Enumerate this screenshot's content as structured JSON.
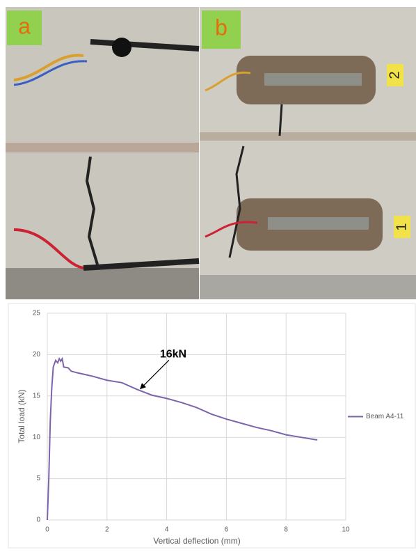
{
  "photos": {
    "panel_labels": [
      "a",
      "b"
    ],
    "gauge_labels": [
      "2",
      "1"
    ]
  },
  "chart_data": {
    "type": "line",
    "x_label": "Vertical deflection (mm)",
    "y_label": "Total load (kN)",
    "x": [
      0,
      0.05,
      0.1,
      0.15,
      0.2,
      0.28,
      0.35,
      0.4,
      0.45,
      0.5,
      0.55,
      0.7,
      0.8,
      1,
      1.5,
      2,
      2.5,
      3,
      3.5,
      4,
      4.5,
      5,
      5.5,
      6,
      6.5,
      7,
      7.5,
      8,
      8.5,
      9,
      9.05
    ],
    "series": [
      {
        "name": "Beam A4-11",
        "color": "#7c64aa",
        "values": [
          0,
          5,
          12,
          16,
          18.5,
          19.3,
          19,
          19.5,
          19.2,
          19.5,
          18.5,
          18.4,
          18,
          17.8,
          17.4,
          16.9,
          16.6,
          15.8,
          15.1,
          14.7,
          14.2,
          13.6,
          12.8,
          12.2,
          11.7,
          11.2,
          10.8,
          10.3,
          10,
          9.7,
          9.7
        ]
      }
    ],
    "xlim": [
      0,
      10
    ],
    "xticks": [
      0,
      2,
      4,
      6,
      8,
      10
    ],
    "ylim": [
      0,
      25
    ],
    "yticks": [
      0,
      5,
      10,
      15,
      20,
      25
    ],
    "grid": true,
    "legend": "right",
    "annotations": [
      {
        "text": "16kN",
        "x": 3.1,
        "y": 15.8
      }
    ]
  }
}
